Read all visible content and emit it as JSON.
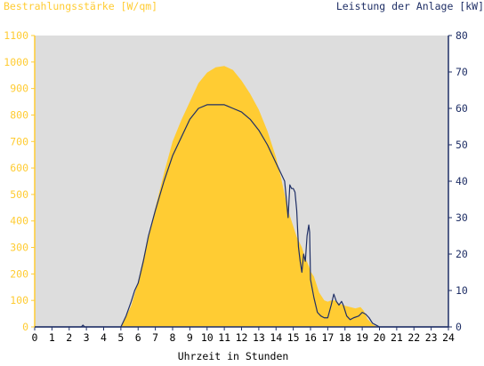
{
  "chart_data": {
    "type": "area",
    "title": "",
    "xlabel": "Uhrzeit in Stunden",
    "ylabel_left": "Bestrahlungsstärke [W/qm]",
    "ylabel_right": "Leistung der Anlage [kW]",
    "xlim": [
      0,
      24
    ],
    "ylim_left": [
      0,
      1100
    ],
    "ylim_right": [
      0,
      80
    ],
    "grid": false,
    "x_ticks": [
      "0",
      "1",
      "2",
      "3",
      "4",
      "5",
      "6",
      "7",
      "8",
      "9",
      "10",
      "11",
      "12",
      "13",
      "14",
      "15",
      "16",
      "17",
      "18",
      "19",
      "20",
      "21",
      "22",
      "23",
      "24"
    ],
    "y_left_ticks": [
      "0",
      "100",
      "200",
      "300",
      "400",
      "500",
      "600",
      "700",
      "800",
      "900",
      "1000",
      "1100"
    ],
    "y_right_ticks": [
      "0",
      "10",
      "20",
      "30",
      "40",
      "50",
      "60",
      "70",
      "80"
    ],
    "series": [
      {
        "name": "Bestrahlungsstärke [W/qm]",
        "axis": "left",
        "color": "#FFCC33",
        "kind": "area",
        "x": [
          0,
          5.0,
          5.3,
          5.6,
          6.0,
          6.5,
          7.0,
          7.5,
          8.0,
          8.5,
          9.0,
          9.5,
          10.0,
          10.5,
          11.0,
          11.5,
          12.0,
          12.5,
          13.0,
          13.5,
          14.0,
          14.3,
          14.6,
          14.8,
          15.0,
          15.2,
          15.5,
          15.7,
          15.9,
          16.0,
          16.2,
          16.5,
          16.8,
          17.0,
          17.2,
          17.4,
          17.6,
          17.8,
          18.0,
          18.3,
          18.6,
          18.9,
          19.1,
          19.3,
          19.6,
          19.8,
          20.0,
          24
        ],
        "y": [
          0,
          0,
          40,
          80,
          170,
          320,
          450,
          580,
          700,
          780,
          850,
          920,
          960,
          980,
          985,
          970,
          930,
          880,
          820,
          740,
          640,
          560,
          470,
          420,
          380,
          340,
          300,
          260,
          230,
          210,
          190,
          130,
          100,
          95,
          100,
          100,
          90,
          85,
          80,
          75,
          70,
          75,
          60,
          30,
          10,
          3,
          0,
          0
        ]
      },
      {
        "name": "Leistung der Anlage [kW]",
        "axis": "right",
        "color": "#1F2F66",
        "kind": "line",
        "x": [
          0,
          2.7,
          2.8,
          2.9,
          5.0,
          5.3,
          5.6,
          5.8,
          6.0,
          6.3,
          6.6,
          7.0,
          7.5,
          8.0,
          8.5,
          9.0,
          9.5,
          10.0,
          10.5,
          11.0,
          11.5,
          12.0,
          12.5,
          13.0,
          13.5,
          14.0,
          14.3,
          14.5,
          14.6,
          14.7,
          14.8,
          14.9,
          15.0,
          15.1,
          15.2,
          15.3,
          15.4,
          15.5,
          15.6,
          15.7,
          15.8,
          15.9,
          15.95,
          16.0,
          16.2,
          16.4,
          16.6,
          16.8,
          17.0,
          17.2,
          17.35,
          17.5,
          17.65,
          17.8,
          17.9,
          18.1,
          18.3,
          18.5,
          18.8,
          19.0,
          19.2,
          19.4,
          19.6,
          19.8,
          20.0,
          24
        ],
        "y": [
          0,
          0,
          0.5,
          0,
          0,
          3,
          7,
          10,
          12,
          18,
          25,
          32,
          40,
          47,
          52,
          57,
          60,
          61,
          61,
          61,
          60,
          59,
          57,
          54,
          50,
          45,
          42,
          40,
          35,
          30,
          39,
          38,
          38,
          37,
          32,
          22,
          18,
          15,
          20,
          18,
          25,
          28,
          26,
          13,
          8,
          4,
          3,
          2.5,
          2.5,
          6,
          9,
          7,
          6,
          7,
          6,
          3,
          2,
          2.5,
          3,
          4,
          3.5,
          2.5,
          1,
          0.5,
          0,
          0
        ]
      }
    ]
  }
}
